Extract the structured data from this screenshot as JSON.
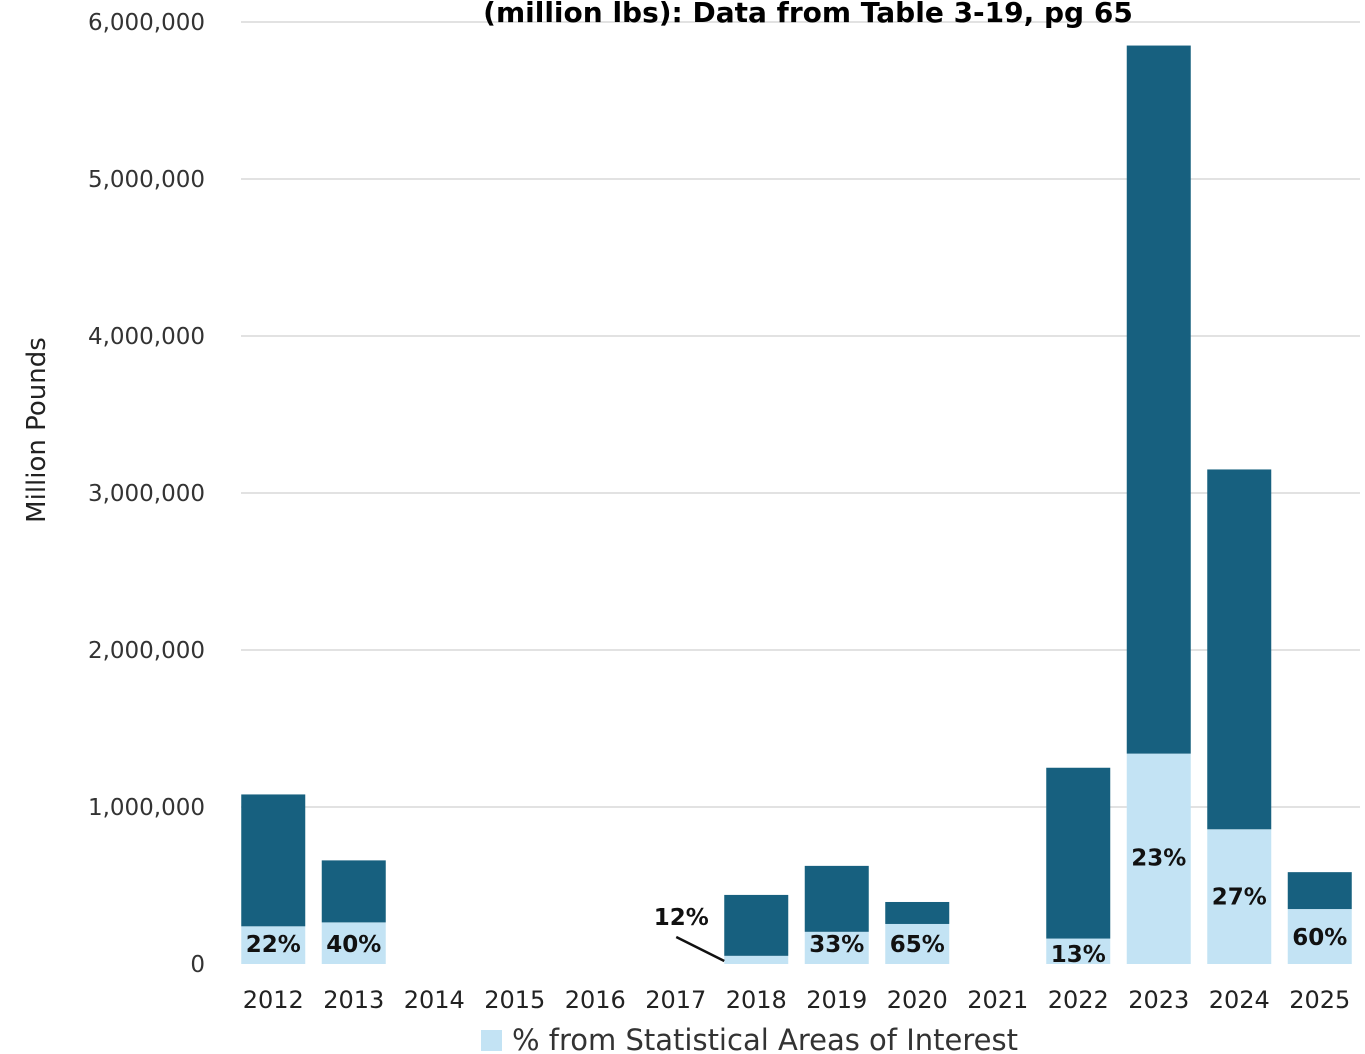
{
  "chart_data": {
    "type": "bar",
    "stacked": true,
    "title": "(million lbs): Data from Table 3-19, pg 65",
    "xlabel": "",
    "ylabel": "Million Pounds",
    "ylim": [
      0,
      6000000
    ],
    "yticks": [
      0,
      1000000,
      2000000,
      3000000,
      4000000,
      5000000,
      6000000
    ],
    "ytick_labels": [
      "0",
      "1,000,000",
      "2,000,000",
      "3,000,000",
      "4,000,000",
      "5,000,000",
      "6,000,000"
    ],
    "grid": true,
    "legend_position": "bottom",
    "categories": [
      "2012",
      "2013",
      "2014",
      "2015",
      "2016",
      "2017",
      "2018",
      "2019",
      "2020",
      "2021",
      "2022",
      "2023",
      "2024",
      "2025"
    ],
    "series": [
      {
        "name": "% from Statistical Areas of Interest",
        "color": "#c3e3f4",
        "values": [
          240000,
          265000,
          0,
          0,
          0,
          0,
          52000,
          205000,
          255000,
          0,
          162000,
          1340000,
          858000,
          350000
        ]
      },
      {
        "color": "#17607f",
        "values": [
          840000,
          395000,
          0,
          0,
          0,
          0,
          388000,
          420000,
          140000,
          0,
          1088000,
          4510000,
          2292000,
          235000
        ]
      }
    ],
    "data_labels": [
      "22%",
      "40%",
      "",
      "",
      "",
      "",
      "12%",
      "33%",
      "65%",
      "",
      "13%",
      "23%",
      "27%",
      "60%"
    ],
    "colors": {
      "light": "#c3e3f4",
      "dark": "#17607f",
      "grid": "#d9d9d9"
    }
  }
}
